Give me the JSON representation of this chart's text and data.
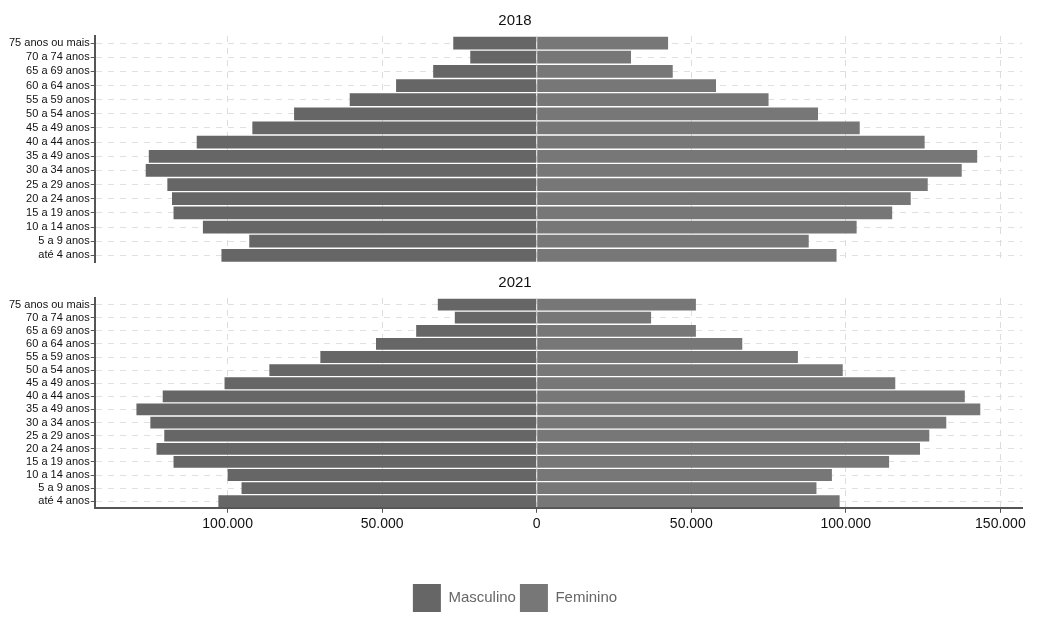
{
  "chart_data": [
    {
      "type": "bar",
      "title": "2018",
      "orientation": "horizontal",
      "categories": [
        "75 anos ou mais",
        "70 a 74 anos",
        "65 a 69 anos",
        "60 a 64 anos",
        "55 a 59 anos",
        "50 a 54 anos",
        "45 a 49 anos",
        "40 a 44 anos",
        "35 a 49 anos",
        "30 a 34 anos",
        "25 a 29 anos",
        "20 a 24 anos",
        "15 a 19 anos",
        "10 a 14 anos",
        "5 a 9 anos",
        "até 4 anos"
      ],
      "series": [
        {
          "color": "#666666",
          "values": [
            -27000,
            -21500,
            -33500,
            -45500,
            -60500,
            -78500,
            -92000,
            -110000,
            -125500,
            -126500,
            -119500,
            -118000,
            -117500,
            -108000,
            -93000,
            -102000
          ]
        },
        {
          "color": "#777777",
          "values": [
            42500,
            30500,
            44000,
            58000,
            75000,
            91000,
            104500,
            125500,
            142500,
            137500,
            126500,
            121000,
            115000,
            103500,
            88000,
            97000
          ]
        }
      ],
      "xlim": [
        -143000,
        157000
      ],
      "xticks": [
        -100000,
        -50000,
        0,
        50000,
        100000,
        150000
      ],
      "grid": true,
      "tick_labels": "y",
      "stacked": true
    },
    {
      "type": "bar",
      "title": "2021",
      "orientation": "horizontal",
      "categories": [
        "75 anos ou mais",
        "70 a 74 anos",
        "65 a 69 anos",
        "60 a 64 anos",
        "55 a 59 anos",
        "50 a 54 anos",
        "45 a 49 anos",
        "40 a 44 anos",
        "35 a 49 anos",
        "30 a 34 anos",
        "25 a 29 anos",
        "20 a 24 anos",
        "15 a 19 anos",
        "10 a 14 anos",
        "5 a 9 anos",
        "até 4 anos"
      ],
      "series": [
        {
          "name": "Masculino",
          "color": "#666666",
          "values": [
            -32000,
            -26500,
            -39000,
            -52000,
            -70000,
            -86500,
            -101000,
            -121000,
            -129500,
            -125000,
            -120500,
            -123000,
            -117500,
            -100000,
            -95500,
            -103000
          ]
        },
        {
          "name": "Feminino",
          "color": "#777777",
          "values": [
            51500,
            37000,
            51500,
            66500,
            84500,
            99000,
            116000,
            138500,
            143500,
            132500,
            127000,
            124000,
            114000,
            95500,
            90500,
            98000
          ]
        }
      ],
      "xlim": [
        -143000,
        157000
      ],
      "xticks": [
        {
          "value": -100000,
          "label": "100.000"
        },
        {
          "value": -50000,
          "label": "50.000"
        },
        0,
        {
          "value": 50000,
          "label": "50.000"
        },
        {
          "value": 100000,
          "label": "100.000"
        },
        {
          "value": 150000,
          "label": "150.000"
        }
      ],
      "grid": true,
      "legend": "bottom",
      "stacked": true
    }
  ]
}
